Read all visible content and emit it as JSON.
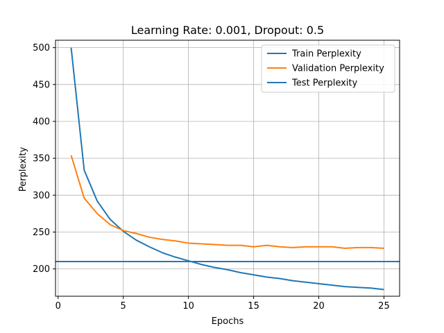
{
  "chart_data": {
    "type": "line",
    "title": "Learning Rate: 0.001, Dropout: 0.5",
    "xlabel": "Epochs",
    "ylabel": "Perplexity",
    "xlim": [
      -0.2,
      26.2
    ],
    "ylim": [
      163,
      510
    ],
    "xticks": [
      0,
      5,
      10,
      15,
      20,
      25
    ],
    "yticks": [
      200,
      250,
      300,
      350,
      400,
      450,
      500
    ],
    "grid": true,
    "legend_position": "top-right",
    "series": [
      {
        "name": "Train Perplexity",
        "color": "#1f77b4",
        "x": [
          1,
          2,
          3,
          4,
          5,
          6,
          7,
          8,
          9,
          10,
          11,
          12,
          13,
          14,
          15,
          16,
          17,
          18,
          19,
          20,
          21,
          22,
          23,
          24,
          25
        ],
        "values": [
          500,
          334,
          292,
          267,
          251,
          239,
          230,
          222,
          216,
          211,
          206,
          202,
          199,
          195,
          192,
          189,
          187,
          184,
          182,
          180,
          178,
          176,
          175,
          174,
          172
        ]
      },
      {
        "name": "Validation Perplexity",
        "color": "#ff7f0e",
        "x": [
          1,
          2,
          3,
          4,
          5,
          6,
          7,
          8,
          9,
          10,
          11,
          12,
          13,
          14,
          15,
          16,
          17,
          18,
          19,
          20,
          21,
          22,
          23,
          24,
          25
        ],
        "values": [
          354,
          296,
          275,
          260,
          252,
          248,
          243,
          240,
          238,
          235,
          234,
          233,
          232,
          232,
          230,
          232,
          230,
          229,
          230,
          230,
          230,
          228,
          229,
          229,
          228
        ]
      },
      {
        "name": "Test Perplexity",
        "color": "#1f77b4",
        "type": "hline",
        "value": 210
      }
    ]
  }
}
